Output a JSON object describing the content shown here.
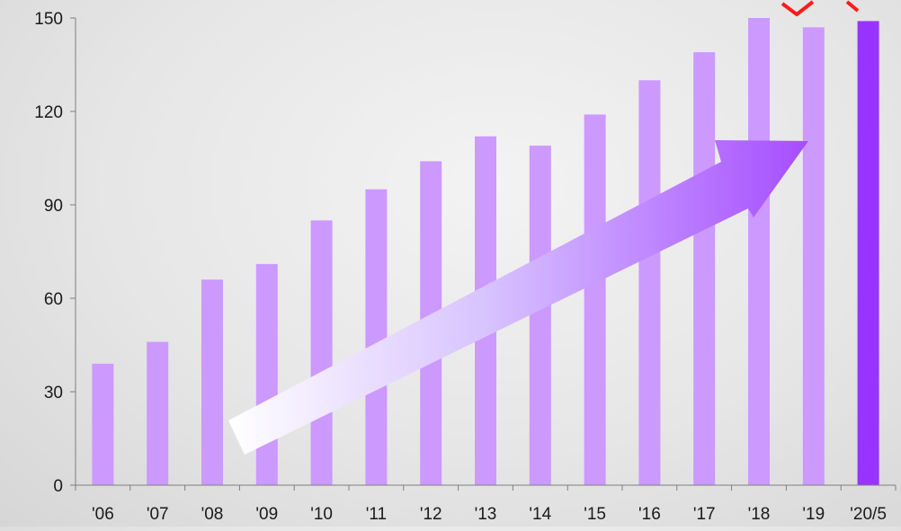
{
  "chart_data": {
    "type": "bar",
    "title": "",
    "xlabel": "",
    "ylabel": "",
    "categories": [
      "'06",
      "'07",
      "'08",
      "'09",
      "'10",
      "'11",
      "'12",
      "'13",
      "'14",
      "'15",
      "'16",
      "'17",
      "'18",
      "'19",
      "'20/5"
    ],
    "values": [
      39,
      46,
      66,
      71,
      85,
      95,
      104,
      112,
      109,
      119,
      130,
      139,
      150,
      147,
      149
    ],
    "ylim": [
      0,
      150
    ],
    "yticks": [
      0,
      30,
      60,
      90,
      120,
      150
    ],
    "grid": false,
    "legend": "none",
    "colors": {
      "bar": "#cc99ff",
      "highlight_bar": "#9933ff",
      "axis": "#7f7f7f",
      "arrow_start": "#ffffff",
      "arrow_end": "#a64dff",
      "marker": "#ff1a1a"
    },
    "highlight_category": "'20/5",
    "annotations": [
      {
        "type": "trend-arrow",
        "direction": "up-right"
      },
      {
        "type": "marker-icon",
        "icon": "red-chevron-icon"
      }
    ]
  }
}
